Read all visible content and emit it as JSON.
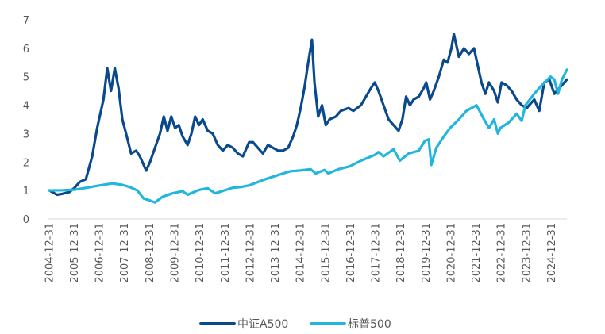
{
  "chart_data": {
    "type": "line",
    "title": "",
    "xlabel": "",
    "ylabel": "",
    "ylim": [
      0,
      7
    ],
    "yticks": [
      "0",
      "1",
      "2",
      "3",
      "4",
      "5",
      "6",
      "7"
    ],
    "x_ticks": [
      "2004-12-31",
      "2005-12-31",
      "2006-12-31",
      "2007-12-31",
      "2008-12-31",
      "2009-12-31",
      "2010-12-31",
      "2011-12-31",
      "2012-12-31",
      "2013-12-31",
      "2014-12-31",
      "2015-12-31",
      "2016-12-31",
      "2017-12-31",
      "2018-12-31",
      "2019-12-31",
      "2020-12-31",
      "2021-12-31",
      "2022-12-31",
      "2023-12-31",
      "2024-12-31"
    ],
    "x_range": [
      2004.99,
      2025.6
    ],
    "legend_position": "bottom",
    "series": [
      {
        "name": "中证A500",
        "color": "#0a4a8c",
        "points": [
          [
            2005.0,
            1.0
          ],
          [
            2005.3,
            0.85
          ],
          [
            2005.5,
            0.88
          ],
          [
            2005.8,
            0.95
          ],
          [
            2006.0,
            1.1
          ],
          [
            2006.2,
            1.3
          ],
          [
            2006.45,
            1.4
          ],
          [
            2006.7,
            2.2
          ],
          [
            2006.9,
            3.2
          ],
          [
            2007.15,
            4.2
          ],
          [
            2007.3,
            5.3
          ],
          [
            2007.45,
            4.5
          ],
          [
            2007.6,
            5.3
          ],
          [
            2007.75,
            4.6
          ],
          [
            2007.9,
            3.5
          ],
          [
            2008.05,
            3.0
          ],
          [
            2008.25,
            2.3
          ],
          [
            2008.45,
            2.4
          ],
          [
            2008.6,
            2.2
          ],
          [
            2008.85,
            1.7
          ],
          [
            2009.0,
            2.0
          ],
          [
            2009.2,
            2.5
          ],
          [
            2009.4,
            3.0
          ],
          [
            2009.55,
            3.6
          ],
          [
            2009.7,
            3.1
          ],
          [
            2009.85,
            3.6
          ],
          [
            2010.0,
            3.2
          ],
          [
            2010.15,
            3.3
          ],
          [
            2010.3,
            2.9
          ],
          [
            2010.5,
            2.6
          ],
          [
            2010.65,
            3.0
          ],
          [
            2010.8,
            3.6
          ],
          [
            2010.95,
            3.3
          ],
          [
            2011.1,
            3.5
          ],
          [
            2011.3,
            3.1
          ],
          [
            2011.5,
            3.0
          ],
          [
            2011.7,
            2.6
          ],
          [
            2011.9,
            2.4
          ],
          [
            2012.1,
            2.6
          ],
          [
            2012.3,
            2.5
          ],
          [
            2012.5,
            2.3
          ],
          [
            2012.7,
            2.2
          ],
          [
            2012.95,
            2.7
          ],
          [
            2013.1,
            2.7
          ],
          [
            2013.3,
            2.5
          ],
          [
            2013.5,
            2.3
          ],
          [
            2013.7,
            2.6
          ],
          [
            2013.9,
            2.5
          ],
          [
            2014.1,
            2.4
          ],
          [
            2014.3,
            2.4
          ],
          [
            2014.5,
            2.5
          ],
          [
            2014.7,
            2.9
          ],
          [
            2014.85,
            3.3
          ],
          [
            2015.0,
            3.9
          ],
          [
            2015.15,
            4.6
          ],
          [
            2015.3,
            5.5
          ],
          [
            2015.45,
            6.3
          ],
          [
            2015.55,
            4.8
          ],
          [
            2015.7,
            3.6
          ],
          [
            2015.85,
            4.0
          ],
          [
            2016.0,
            3.3
          ],
          [
            2016.15,
            3.5
          ],
          [
            2016.4,
            3.6
          ],
          [
            2016.6,
            3.8
          ],
          [
            2016.9,
            3.9
          ],
          [
            2017.1,
            3.8
          ],
          [
            2017.4,
            4.0
          ],
          [
            2017.6,
            4.3
          ],
          [
            2017.8,
            4.6
          ],
          [
            2017.95,
            4.8
          ],
          [
            2018.1,
            4.5
          ],
          [
            2018.3,
            4.0
          ],
          [
            2018.5,
            3.5
          ],
          [
            2018.7,
            3.3
          ],
          [
            2018.9,
            3.1
          ],
          [
            2019.05,
            3.5
          ],
          [
            2019.2,
            4.3
          ],
          [
            2019.35,
            4.0
          ],
          [
            2019.5,
            4.2
          ],
          [
            2019.7,
            4.3
          ],
          [
            2019.9,
            4.6
          ],
          [
            2020.0,
            4.8
          ],
          [
            2020.15,
            4.2
          ],
          [
            2020.3,
            4.5
          ],
          [
            2020.5,
            5.0
          ],
          [
            2020.7,
            5.6
          ],
          [
            2020.85,
            5.5
          ],
          [
            2021.0,
            6.0
          ],
          [
            2021.1,
            6.5
          ],
          [
            2021.3,
            5.7
          ],
          [
            2021.5,
            6.0
          ],
          [
            2021.7,
            5.8
          ],
          [
            2021.9,
            6.0
          ],
          [
            2022.0,
            5.6
          ],
          [
            2022.2,
            4.8
          ],
          [
            2022.35,
            4.4
          ],
          [
            2022.5,
            4.8
          ],
          [
            2022.7,
            4.5
          ],
          [
            2022.85,
            4.1
          ],
          [
            2023.0,
            4.8
          ],
          [
            2023.2,
            4.7
          ],
          [
            2023.4,
            4.5
          ],
          [
            2023.6,
            4.2
          ],
          [
            2023.8,
            4.0
          ],
          [
            2024.0,
            3.9
          ],
          [
            2024.1,
            4.0
          ],
          [
            2024.3,
            4.2
          ],
          [
            2024.5,
            3.8
          ],
          [
            2024.7,
            4.8
          ],
          [
            2024.9,
            4.9
          ],
          [
            2025.1,
            4.4
          ],
          [
            2025.3,
            4.6
          ],
          [
            2025.5,
            4.8
          ],
          [
            2025.6,
            4.9
          ]
        ]
      },
      {
        "name": "标普500",
        "color": "#22b5dd",
        "points": [
          [
            2005.0,
            1.0
          ],
          [
            2005.5,
            1.01
          ],
          [
            2006.0,
            1.03
          ],
          [
            2006.5,
            1.1
          ],
          [
            2007.0,
            1.18
          ],
          [
            2007.5,
            1.25
          ],
          [
            2007.9,
            1.2
          ],
          [
            2008.2,
            1.12
          ],
          [
            2008.5,
            1.0
          ],
          [
            2008.75,
            0.72
          ],
          [
            2009.0,
            0.65
          ],
          [
            2009.2,
            0.58
          ],
          [
            2009.5,
            0.78
          ],
          [
            2009.9,
            0.9
          ],
          [
            2010.3,
            0.98
          ],
          [
            2010.5,
            0.85
          ],
          [
            2010.95,
            1.02
          ],
          [
            2011.3,
            1.08
          ],
          [
            2011.6,
            0.9
          ],
          [
            2011.95,
            1.0
          ],
          [
            2012.3,
            1.1
          ],
          [
            2012.6,
            1.12
          ],
          [
            2012.95,
            1.18
          ],
          [
            2013.3,
            1.3
          ],
          [
            2013.6,
            1.4
          ],
          [
            2013.95,
            1.5
          ],
          [
            2014.3,
            1.6
          ],
          [
            2014.6,
            1.68
          ],
          [
            2014.95,
            1.7
          ],
          [
            2015.4,
            1.75
          ],
          [
            2015.6,
            1.6
          ],
          [
            2015.95,
            1.72
          ],
          [
            2016.1,
            1.6
          ],
          [
            2016.5,
            1.75
          ],
          [
            2016.95,
            1.85
          ],
          [
            2017.4,
            2.05
          ],
          [
            2017.95,
            2.25
          ],
          [
            2018.1,
            2.35
          ],
          [
            2018.3,
            2.2
          ],
          [
            2018.7,
            2.45
          ],
          [
            2018.95,
            2.05
          ],
          [
            2019.3,
            2.3
          ],
          [
            2019.7,
            2.4
          ],
          [
            2019.95,
            2.75
          ],
          [
            2020.1,
            2.8
          ],
          [
            2020.2,
            1.9
          ],
          [
            2020.4,
            2.5
          ],
          [
            2020.7,
            2.9
          ],
          [
            2020.95,
            3.2
          ],
          [
            2021.3,
            3.5
          ],
          [
            2021.6,
            3.8
          ],
          [
            2021.9,
            3.95
          ],
          [
            2022.0,
            4.0
          ],
          [
            2022.3,
            3.5
          ],
          [
            2022.5,
            3.2
          ],
          [
            2022.7,
            3.5
          ],
          [
            2022.85,
            3.0
          ],
          [
            2022.95,
            3.2
          ],
          [
            2023.3,
            3.4
          ],
          [
            2023.6,
            3.7
          ],
          [
            2023.8,
            3.45
          ],
          [
            2023.95,
            4.0
          ],
          [
            2024.3,
            4.4
          ],
          [
            2024.6,
            4.7
          ],
          [
            2024.95,
            5.0
          ],
          [
            2025.1,
            4.9
          ],
          [
            2025.25,
            4.4
          ],
          [
            2025.4,
            4.9
          ],
          [
            2025.6,
            5.25
          ]
        ]
      }
    ]
  }
}
